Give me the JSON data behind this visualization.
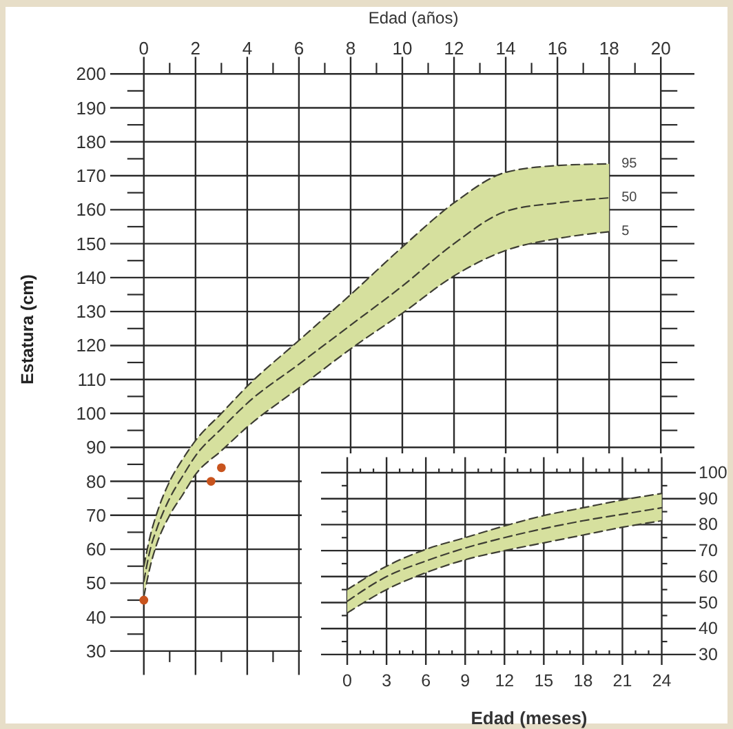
{
  "chart_data": [
    {
      "type": "line",
      "xlabel": "Edad (años)",
      "ylabel": "Estatura (cm)",
      "xlim": [
        -1.3,
        21.3
      ],
      "ylim": [
        23,
        205
      ],
      "xticks": [
        0,
        {
          "value": 1,
          "label": null
        },
        2,
        {
          "value": 3,
          "label": null
        },
        4,
        {
          "value": 5,
          "label": null
        },
        6,
        {
          "value": 7,
          "label": null
        },
        8,
        {
          "value": 9,
          "label": null
        },
        10,
        {
          "value": 11,
          "label": null
        },
        12,
        {
          "value": 13,
          "label": null
        },
        14,
        {
          "value": 15,
          "label": null
        },
        16,
        {
          "value": 17,
          "label": null
        },
        18,
        {
          "value": 19,
          "label": null
        },
        20
      ],
      "yticks": [
        30,
        {
          "value": 35,
          "label": null
        },
        40,
        {
          "value": 45,
          "label": null
        },
        50,
        {
          "value": 55,
          "label": null
        },
        60,
        {
          "value": 65,
          "label": null
        },
        70,
        {
          "value": 75,
          "label": null
        },
        80,
        {
          "value": 85,
          "label": null
        },
        90,
        {
          "value": 95,
          "label": null
        },
        100,
        {
          "value": 105,
          "label": null
        },
        110,
        {
          "value": 115,
          "label": null
        },
        120,
        {
          "value": 125,
          "label": null
        },
        130,
        {
          "value": 135,
          "label": null
        },
        140,
        {
          "value": 145,
          "label": null
        },
        150,
        {
          "value": 155,
          "label": null
        },
        160,
        {
          "value": 165,
          "label": null
        },
        170,
        {
          "value": 175,
          "label": null
        },
        180,
        {
          "value": 185,
          "label": null
        },
        190,
        {
          "value": 195,
          "label": null
        },
        200
      ],
      "grid": true,
      "x": [
        0,
        0.25,
        0.5,
        1,
        1.5,
        2,
        3,
        4,
        6,
        8,
        10,
        12,
        14,
        16,
        18
      ],
      "series": [
        {
          "name": "95",
          "color": "#3d3d33",
          "line_style": "dashed",
          "values": [
            55,
            64,
            70.5,
            80,
            86.5,
            92,
            100,
            108,
            121.5,
            135,
            149,
            162,
            171,
            173,
            173.5
          ]
        },
        {
          "name": "50",
          "color": "#3d3d33",
          "line_style": "dashed",
          "values": [
            50.5,
            60,
            66,
            75,
            81.5,
            87.5,
            95.5,
            103,
            114.5,
            126,
            137.5,
            150,
            159.5,
            162,
            163.5
          ],
          "lower": [
            46,
            55,
            61.5,
            70,
            76,
            82,
            89,
            96,
            107.5,
            119,
            129.5,
            140.5,
            148,
            151.5,
            153.5
          ],
          "upper": [
            55,
            64,
            70.5,
            80,
            86.5,
            92,
            100,
            108,
            121.5,
            135,
            149,
            162,
            171,
            173,
            173.5
          ]
        },
        {
          "name": "5",
          "color": "#3d3d33",
          "line_style": "dashed",
          "values": [
            46,
            55,
            61.5,
            70,
            76,
            82,
            89,
            96,
            107.5,
            119,
            129.5,
            140.5,
            148,
            151.5,
            153.5
          ]
        },
        {
          "type": "scatter",
          "color": "#c8541e",
          "marker": "circle",
          "x": [
            0,
            2.6,
            3
          ],
          "values": [
            45,
            80,
            84
          ]
        }
      ]
    },
    {
      "type": "line",
      "xlabel": "Edad (meses)",
      "xlim": [
        -2,
        26.6
      ],
      "ylim": [
        26,
        106
      ],
      "xticks": [
        0,
        {
          "value": 1,
          "label": null
        },
        {
          "value": 2,
          "label": null
        },
        3,
        {
          "value": 4,
          "label": null
        },
        {
          "value": 5,
          "label": null
        },
        6,
        {
          "value": 7,
          "label": null
        },
        {
          "value": 8,
          "label": null
        },
        9,
        {
          "value": 10,
          "label": null
        },
        {
          "value": 11,
          "label": null
        },
        12,
        {
          "value": 13,
          "label": null
        },
        {
          "value": 14,
          "label": null
        },
        15,
        {
          "value": 16,
          "label": null
        },
        {
          "value": 17,
          "label": null
        },
        18,
        {
          "value": 19,
          "label": null
        },
        {
          "value": 20,
          "label": null
        },
        21,
        {
          "value": 22,
          "label": null
        },
        {
          "value": 23,
          "label": null
        },
        24
      ],
      "yticks": [
        30,
        {
          "value": 35,
          "label": null
        },
        40,
        {
          "value": 45,
          "label": null
        },
        50,
        {
          "value": 55,
          "label": null
        },
        60,
        {
          "value": 65,
          "label": null
        },
        70,
        {
          "value": 75,
          "label": null
        },
        80,
        {
          "value": 85,
          "label": null
        },
        90,
        {
          "value": 95,
          "label": null
        },
        100
      ],
      "grid": true,
      "x": [
        0,
        3,
        6,
        9,
        12,
        15,
        18,
        21,
        24
      ],
      "series": [
        {
          "color": "#3d3d33",
          "line_style": "dashed",
          "values": [
            55,
            64,
            70.5,
            75,
            79.5,
            83.5,
            86.5,
            89.5,
            92
          ]
        },
        {
          "color": "#3d3d33",
          "line_style": "dashed",
          "values": [
            50.5,
            60,
            66,
            71,
            75,
            78.5,
            81.5,
            84,
            86.5
          ],
          "lower": [
            46,
            55,
            61.5,
            66.5,
            70,
            73,
            76,
            79,
            81.5
          ],
          "upper": [
            55,
            64,
            70.5,
            75,
            79.5,
            83.5,
            86.5,
            89.5,
            92
          ]
        },
        {
          "color": "#3d3d33",
          "line_style": "dashed",
          "values": [
            46,
            55,
            61.5,
            66.5,
            70,
            73,
            76,
            79,
            81.5
          ]
        }
      ]
    }
  ]
}
